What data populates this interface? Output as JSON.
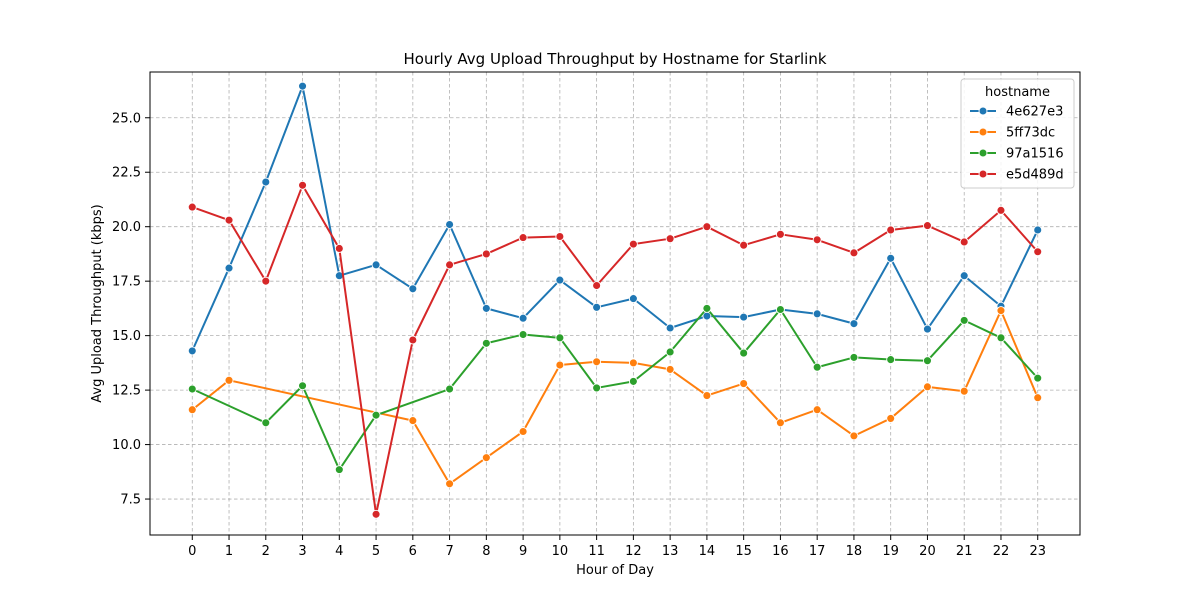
{
  "chart_data": {
    "type": "line",
    "title": "Hourly Avg Upload Throughput by Hostname for Starlink",
    "xlabel": "Hour of Day",
    "ylabel": "Avg Upload Throughput (kbps)",
    "x": [
      0,
      1,
      2,
      3,
      4,
      5,
      6,
      7,
      8,
      9,
      10,
      11,
      12,
      13,
      14,
      15,
      16,
      17,
      18,
      19,
      20,
      21,
      22,
      23
    ],
    "xlim": [
      -1.15,
      24.15
    ],
    "ylim": [
      5.85,
      27.1
    ],
    "yticks": [
      7.5,
      10.0,
      12.5,
      15.0,
      17.5,
      20.0,
      22.5,
      25.0
    ],
    "ytick_labels": [
      "7.5",
      "10.0",
      "12.5",
      "15.0",
      "17.5",
      "20.0",
      "22.5",
      "25.0"
    ],
    "grid": true,
    "legend_title": "hostname",
    "legend_position": "top-right",
    "series": [
      {
        "name": "4e627e3",
        "color": "#1f77b4",
        "x": [
          0,
          1,
          2,
          3,
          4,
          5,
          6,
          7,
          8,
          9,
          10,
          11,
          12,
          13,
          14,
          15,
          16,
          17,
          18,
          19,
          20,
          21,
          22,
          23
        ],
        "values": [
          14.3,
          18.1,
          22.05,
          26.45,
          17.75,
          18.25,
          17.15,
          20.1,
          16.25,
          15.8,
          17.55,
          16.3,
          16.7,
          15.35,
          15.9,
          15.85,
          16.2,
          16.0,
          15.55,
          18.55,
          15.3,
          17.75,
          16.35,
          19.85
        ]
      },
      {
        "name": "5ff73dc",
        "color": "#ff7f0e",
        "x": [
          0,
          1,
          6,
          7,
          8,
          9,
          10,
          11,
          12,
          13,
          14,
          15,
          16,
          17,
          18,
          19,
          20,
          21,
          22,
          23
        ],
        "values": [
          11.6,
          12.95,
          11.1,
          8.2,
          9.4,
          10.6,
          13.65,
          13.8,
          13.75,
          13.45,
          12.25,
          12.8,
          11.0,
          11.6,
          10.4,
          11.2,
          12.65,
          12.45,
          16.15,
          12.15
        ]
      },
      {
        "name": "97a1516",
        "color": "#2ca02c",
        "x": [
          0,
          2,
          3,
          4,
          5,
          7,
          8,
          9,
          10,
          11,
          12,
          13,
          14,
          15,
          16,
          17,
          18,
          19,
          20,
          21,
          22,
          23
        ],
        "values": [
          12.55,
          11.0,
          12.7,
          8.85,
          11.35,
          12.55,
          14.65,
          15.05,
          14.9,
          12.6,
          12.9,
          14.25,
          16.25,
          14.2,
          16.2,
          13.55,
          14.0,
          13.9,
          13.85,
          15.7,
          14.9,
          13.05
        ]
      },
      {
        "name": "e5d489d",
        "color": "#d62728",
        "x": [
          0,
          1,
          2,
          3,
          4,
          5,
          6,
          7,
          8,
          9,
          10,
          11,
          12,
          13,
          14,
          15,
          16,
          17,
          18,
          19,
          20,
          21,
          22,
          23
        ],
        "values": [
          20.9,
          20.3,
          17.5,
          21.9,
          19.0,
          6.8,
          14.8,
          18.25,
          18.75,
          19.5,
          19.55,
          17.3,
          19.2,
          19.45,
          20.0,
          19.15,
          19.65,
          19.4,
          18.8,
          19.85,
          20.05,
          19.3,
          20.75,
          18.85
        ]
      }
    ]
  }
}
